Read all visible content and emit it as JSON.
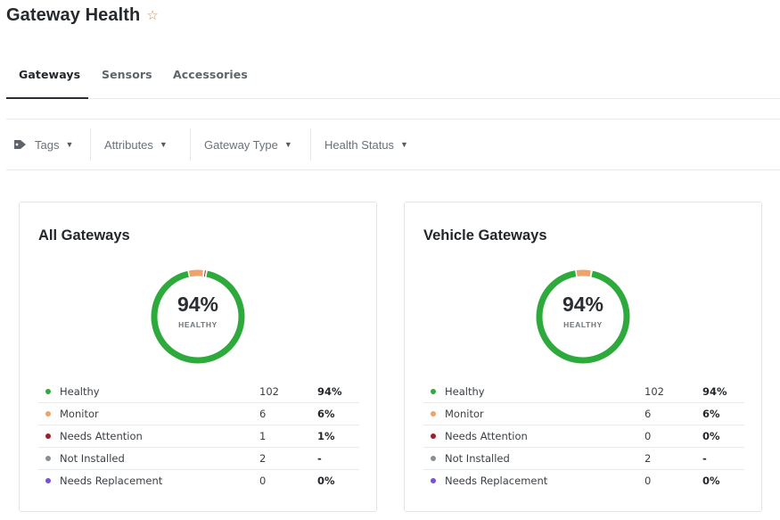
{
  "page": {
    "title": "Gateway Health",
    "favorite_icon": "star-outline-icon",
    "favorite_color": "#f0893a"
  },
  "tabs": [
    {
      "label": "Gateways",
      "active": true
    },
    {
      "label": "Sensors",
      "active": false
    },
    {
      "label": "Accessories",
      "active": false
    }
  ],
  "filters": [
    {
      "label": "Tags",
      "icon": "tag-icon"
    },
    {
      "label": "Attributes"
    },
    {
      "label": "Gateway Type"
    },
    {
      "label": "Health Status"
    }
  ],
  "colors": {
    "healthy": "#2eaa3c",
    "monitor": "#f0a26b",
    "needs_attention": "#a01d2c",
    "not_installed": "#8b9096",
    "needs_replacement": "#7b4fd6"
  },
  "cards": [
    {
      "title": "All Gateways",
      "donut_percent": "94%",
      "donut_label": "HEALTHY",
      "rows": [
        {
          "label": "Healthy",
          "count": "102",
          "pct": "94%",
          "status": "healthy"
        },
        {
          "label": "Monitor",
          "count": "6",
          "pct": "6%",
          "status": "monitor"
        },
        {
          "label": "Needs Attention",
          "count": "1",
          "pct": "1%",
          "status": "needs_attention"
        },
        {
          "label": "Not Installed",
          "count": "2",
          "pct": "-",
          "status": "not_installed"
        },
        {
          "label": "Needs Replacement",
          "count": "0",
          "pct": "0%",
          "status": "needs_replacement"
        }
      ]
    },
    {
      "title": "Vehicle Gateways",
      "donut_percent": "94%",
      "donut_label": "HEALTHY",
      "rows": [
        {
          "label": "Healthy",
          "count": "102",
          "pct": "94%",
          "status": "healthy"
        },
        {
          "label": "Monitor",
          "count": "6",
          "pct": "6%",
          "status": "monitor"
        },
        {
          "label": "Needs Attention",
          "count": "0",
          "pct": "0%",
          "status": "needs_attention"
        },
        {
          "label": "Not Installed",
          "count": "2",
          "pct": "-",
          "status": "not_installed"
        },
        {
          "label": "Needs Replacement",
          "count": "0",
          "pct": "0%",
          "status": "needs_replacement"
        }
      ]
    }
  ]
}
